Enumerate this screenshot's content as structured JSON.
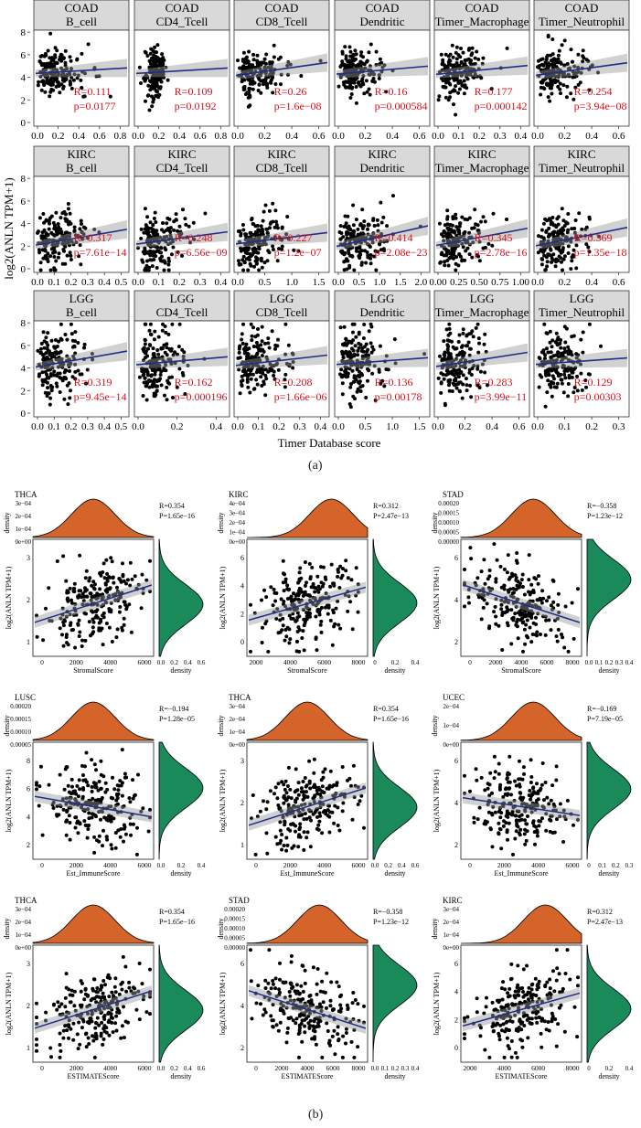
{
  "figure": {
    "caption_a": "(a)",
    "caption_b": "(b)"
  },
  "colors": {
    "point": "#000000",
    "fit": "#1f2d8a",
    "band": "#9a9a9a",
    "stat": "#d8121b",
    "strip": "#d9d9d9",
    "top_density": "#d4642a",
    "right_density": "#1b8a5a"
  },
  "panel_a": {
    "ylabel": "log2(ANLN TPM+1)",
    "xlabel": "Timer Database score",
    "rows": [
      {
        "cancer": "COAD",
        "yticks": [
          "0",
          "2",
          "4",
          "6",
          "8"
        ],
        "cells": [
          {
            "cell": "B_cell",
            "label": "B_cell",
            "R": "R=0.111",
            "p": "p=0.0177",
            "xticks": [
              "0.0",
              "0.2",
              "0.4",
              "0.6",
              "0.8"
            ]
          },
          {
            "cell": "CD4_Tcell",
            "label": "CD4_Tcell",
            "R": "R=0.109",
            "p": "p=0.0192",
            "xticks": [
              "0.0",
              "0.2",
              "0.4",
              "0.6",
              "0.8"
            ]
          },
          {
            "cell": "CD8_Tcell",
            "label": "CD8_Tcell",
            "R": "R=0.26",
            "p": "p=1.6e−08",
            "xticks": [
              "0.0",
              "0.2",
              "0.4",
              "0.6"
            ]
          },
          {
            "cell": "Dendritic",
            "label": "Dendritic",
            "R": "R=0.16",
            "p": "p=0.000584",
            "xticks": [
              "0.0",
              "0.2",
              "0.4",
              "0.6"
            ]
          },
          {
            "cell": "Timer_Macrophage",
            "label": "Timer_Macrophage",
            "R": "R=0.177",
            "p": "p=0.000142",
            "xticks": [
              "0.0",
              "0.1",
              "0.2",
              "0.3",
              "0.4"
            ]
          },
          {
            "cell": "Timer_Neutrophil",
            "label": "Timer_Neutrophil",
            "R": "R=0.254",
            "p": "p=3.94e−08",
            "xticks": [
              "0.0",
              "0.2",
              "0.4",
              "0.6"
            ]
          }
        ]
      },
      {
        "cancer": "KIRC",
        "yticks": [
          "0",
          "2",
          "4",
          "6",
          "8"
        ],
        "cells": [
          {
            "cell": "B_cell",
            "label": "B_cell",
            "R": "R=0.317",
            "p": "p=7.61e−14",
            "xticks": [
              "0.0",
              "0.1",
              "0.2",
              "0.3",
              "0.4",
              "0.5"
            ]
          },
          {
            "cell": "CD4_Tcell",
            "label": "CD4_Tcell",
            "R": "R=0.248",
            "p": "p=6.56e−09",
            "xticks": [
              "0.0",
              "0.1",
              "0.2",
              "0.3",
              "0.4"
            ]
          },
          {
            "cell": "CD8_Tcell",
            "label": "CD8_Tcell",
            "R": "R=0.227",
            "p": "p=1.2e−07",
            "xticks": [
              "0.0",
              "0.5",
              "1.0",
              "1.5"
            ]
          },
          {
            "cell": "Dendritic",
            "label": "Dendritic",
            "R": "R=0.414",
            "p": "p=2.08e−23",
            "xticks": [
              "0.0",
              "0.5",
              "1.0",
              "1.5",
              "2.0"
            ]
          },
          {
            "cell": "Timer_Macrophage",
            "label": "Timer_Macrophage",
            "R": "R=0.345",
            "p": "p=2.78e−16",
            "xticks": [
              "0.00",
              "0.25",
              "0.50",
              "0.75",
              "1.00"
            ]
          },
          {
            "cell": "Timer_Neutrophil",
            "label": "Timer_Neutrophil",
            "R": "R=0.369",
            "p": "p=1.35e−18",
            "xticks": [
              "0.0",
              "0.2",
              "0.4",
              "0.6"
            ]
          }
        ]
      },
      {
        "cancer": "LGG",
        "yticks": [
          "0",
          "2",
          "4",
          "6",
          "8"
        ],
        "cells": [
          {
            "cell": "B_cell",
            "label": "B_cell",
            "R": "R=0.319",
            "p": "p=9.45e−14",
            "xticks": [
              "0.0",
              "0.1",
              "0.2",
              "0.3",
              "0.4",
              "0.5"
            ]
          },
          {
            "cell": "CD4_Tcell",
            "label": "CD4_Tcell",
            "R": "R=0.162",
            "p": "p=0.000196",
            "xticks": [
              "0.0",
              "0.2",
              "0.4"
            ]
          },
          {
            "cell": "CD8_Tcell",
            "label": "CD8_Tcell",
            "R": "R=0.208",
            "p": "p=1.66e−06",
            "xticks": [
              "0.0",
              "0.1",
              "0.2",
              "0.3",
              "0.4"
            ]
          },
          {
            "cell": "Dendritic",
            "label": "Dendritic",
            "R": "R=0.136",
            "p": "p=0.00178",
            "xticks": [
              "0.0",
              "0.5",
              "1.0",
              "1.5"
            ]
          },
          {
            "cell": "Timer_Macrophage",
            "label": "Timer_Macrophage",
            "R": "R=0.283",
            "p": "p=3.99e−11",
            "xticks": [
              "0.0",
              "0.2",
              "0.4",
              "0.6"
            ]
          },
          {
            "cell": "Timer_Neutrophil",
            "label": "Timer_Neutrophil",
            "R": "R=0.129",
            "p": "p=0.00303",
            "xticks": [
              "0.0",
              "0.1",
              "0.2",
              "0.3"
            ]
          }
        ]
      }
    ]
  },
  "panel_b": {
    "ylabel": "log2(ANLN TPM+1)",
    "density_label": "density",
    "plots": [
      {
        "cancer": "THCA",
        "score": "StromalScore",
        "R": "R=0.354",
        "P": "P=1.65e−16",
        "top_yticks": [
          "3e−04",
          "2e−04",
          "1e−04",
          "0e+00"
        ],
        "xticks": [
          "0",
          "2000",
          "4000",
          "6000"
        ],
        "yticks": [
          "1",
          "2",
          "3"
        ],
        "dens_xticks": [
          "0.0",
          "0.2",
          "0.4",
          "0.6"
        ]
      },
      {
        "cancer": "KIRC",
        "score": "StromalScore",
        "R": "R=0.312",
        "P": "P=2.47e−13",
        "top_yticks": [
          "4e−04",
          "3e−04",
          "2e−04",
          "1e−04",
          "0e+00"
        ],
        "xticks": [
          "2000",
          "4000",
          "6000",
          "8000"
        ],
        "yticks": [
          "0",
          "2",
          "4",
          "6"
        ],
        "dens_xticks": [
          "0",
          "0.2",
          "0.4"
        ]
      },
      {
        "cancer": "STAD",
        "score": "StromalScore",
        "R": "R=−0.358",
        "P": "P=1.23e−12",
        "top_yticks": [
          "0.00020",
          "0.00015",
          "0.00010",
          "0.00005",
          "0.00000"
        ],
        "xticks": [
          "0",
          "2000",
          "4000",
          "6000",
          "8000"
        ],
        "yticks": [
          "2",
          "4",
          "6"
        ],
        "dens_xticks": [
          "0.0",
          "0.1",
          "0.2",
          "0.3",
          "0.4"
        ]
      },
      {
        "cancer": "LUSC",
        "score": "Est_ImmuneScore",
        "R": "R=−0.194",
        "P": "P=1.28e−05",
        "top_yticks": [
          "0.00020",
          "0.00015",
          "0.00010",
          "0.00005"
        ],
        "xticks": [
          "0",
          "2000",
          "4000",
          "6000"
        ],
        "yticks": [
          "2",
          "4",
          "6",
          "8"
        ],
        "dens_xticks": [
          "0.0",
          "0.2",
          "0.4"
        ]
      },
      {
        "cancer": "THCA",
        "score": "Est_ImmuneScore",
        "R": "R=0.354",
        "P": "P=1.65e−16",
        "top_yticks": [
          "3e−04",
          "2e−04",
          "1e−04",
          "0e+00"
        ],
        "xticks": [
          "0",
          "2000",
          "4000",
          "6000"
        ],
        "yticks": [
          "1",
          "2",
          "3"
        ],
        "dens_xticks": [
          "0.0",
          "0.2",
          "0.4",
          "0.6"
        ]
      },
      {
        "cancer": "UCEC",
        "score": "Est_ImmuneScore",
        "R": "R=−0.169",
        "P": "P=7.19e−05",
        "top_yticks": [
          "2e−04",
          "1e−04",
          "0e+00"
        ],
        "xticks": [
          "0",
          "2000",
          "4000",
          "6000"
        ],
        "yticks": [
          "2",
          "4",
          "6"
        ],
        "dens_xticks": [
          "0",
          "0.1",
          "0.2",
          "0.3"
        ]
      },
      {
        "cancer": "THCA",
        "score": "ESTIMATEScore",
        "R": "R=0.354",
        "P": "P=1.65e−16",
        "top_yticks": [
          "3e−04",
          "2e−04",
          "1e−04",
          "0e+00"
        ],
        "xticks": [
          "0",
          "2000",
          "4000",
          "6000"
        ],
        "yticks": [
          "1",
          "2",
          "3"
        ],
        "dens_xticks": [
          "0.0",
          "0.2",
          "0.4",
          "0.6"
        ]
      },
      {
        "cancer": "STAD",
        "score": "ESTIMATEScore",
        "R": "R=−0.358",
        "P": "P=1.23e−12",
        "top_yticks": [
          "0.00020",
          "0.00015",
          "0.00010",
          "0.00005",
          "0.00000"
        ],
        "xticks": [
          "0",
          "2000",
          "4000",
          "6000",
          "8000"
        ],
        "yticks": [
          "2",
          "4",
          "6"
        ],
        "dens_xticks": [
          "0.0",
          "0.1",
          "0.2",
          "0.3",
          "0.4"
        ]
      },
      {
        "cancer": "KIRC",
        "score": "ESTIMATEScore",
        "R": "R=0.312",
        "P": "P=2.47e−13",
        "top_yticks": [
          "3e−04",
          "2e−04",
          "1e−04",
          "0e+00"
        ],
        "xticks": [
          "2000",
          "4000",
          "6000",
          "8000"
        ],
        "yticks": [
          "0",
          "2",
          "4",
          "6"
        ],
        "dens_xticks": [
          "0",
          "0.2",
          "0.4"
        ]
      }
    ]
  },
  "chart_data": [
    {
      "type": "scatter",
      "title": "",
      "xlabel": "Timer Database score",
      "ylabel": "log2(ANLN TPM+1)",
      "ylim": [
        0,
        8
      ],
      "facets": [
        {
          "row": "COAD",
          "col": "B_cell",
          "R": 0.111,
          "p": "0.0177",
          "xlim": [
            0,
            0.8
          ]
        },
        {
          "row": "COAD",
          "col": "CD4_Tcell",
          "R": 0.109,
          "p": "0.0192",
          "xlim": [
            0,
            0.8
          ]
        },
        {
          "row": "COAD",
          "col": "CD8_Tcell",
          "R": 0.26,
          "p": "1.6e-08",
          "xlim": [
            0,
            0.6
          ]
        },
        {
          "row": "COAD",
          "col": "Dendritic",
          "R": 0.16,
          "p": "0.000584",
          "xlim": [
            0,
            0.6
          ]
        },
        {
          "row": "COAD",
          "col": "Timer_Macrophage",
          "R": 0.177,
          "p": "0.000142",
          "xlim": [
            0,
            0.4
          ]
        },
        {
          "row": "COAD",
          "col": "Timer_Neutrophil",
          "R": 0.254,
          "p": "3.94e-08",
          "xlim": [
            0,
            0.7
          ]
        },
        {
          "row": "KIRC",
          "col": "B_cell",
          "R": 0.317,
          "p": "7.61e-14",
          "xlim": [
            0,
            0.5
          ]
        },
        {
          "row": "KIRC",
          "col": "CD4_Tcell",
          "R": 0.248,
          "p": "6.56e-09",
          "xlim": [
            0,
            0.45
          ]
        },
        {
          "row": "KIRC",
          "col": "CD8_Tcell",
          "R": 0.227,
          "p": "1.2e-07",
          "xlim": [
            0,
            1.6
          ]
        },
        {
          "row": "KIRC",
          "col": "Dendritic",
          "R": 0.414,
          "p": "2.08e-23",
          "xlim": [
            0,
            2.2
          ]
        },
        {
          "row": "KIRC",
          "col": "Timer_Macrophage",
          "R": 0.345,
          "p": "2.78e-16",
          "xlim": [
            0,
            1.05
          ]
        },
        {
          "row": "KIRC",
          "col": "Timer_Neutrophil",
          "R": 0.369,
          "p": "1.35e-18",
          "xlim": [
            0,
            0.65
          ]
        },
        {
          "row": "LGG",
          "col": "B_cell",
          "R": 0.319,
          "p": "9.45e-14",
          "xlim": [
            0,
            0.55
          ]
        },
        {
          "row": "LGG",
          "col": "CD4_Tcell",
          "R": 0.162,
          "p": "0.000196",
          "xlim": [
            0,
            0.5
          ]
        },
        {
          "row": "LGG",
          "col": "CD8_Tcell",
          "R": 0.208,
          "p": "1.66e-06",
          "xlim": [
            0,
            0.45
          ]
        },
        {
          "row": "LGG",
          "col": "Dendritic",
          "R": 0.136,
          "p": "0.00178",
          "xlim": [
            0,
            1.5
          ]
        },
        {
          "row": "LGG",
          "col": "Timer_Macrophage",
          "R": 0.283,
          "p": "3.99e-11",
          "xlim": [
            0,
            0.7
          ]
        },
        {
          "row": "LGG",
          "col": "Timer_Neutrophil",
          "R": 0.129,
          "p": "0.00303",
          "xlim": [
            0,
            0.38
          ]
        }
      ]
    },
    {
      "type": "scatter",
      "title": "",
      "ylabel": "log2(ANLN TPM+1)",
      "facets": [
        {
          "cancer": "THCA",
          "xlabel": "StromalScore",
          "R": 0.354,
          "P": "1.65e-16",
          "xlim": [
            -500,
            7500
          ],
          "ylim": [
            0,
            3.5
          ]
        },
        {
          "cancer": "KIRC",
          "xlabel": "StromalScore",
          "R": 0.312,
          "P": "2.47e-13",
          "xlim": [
            500,
            8500
          ],
          "ylim": [
            -0.5,
            7.5
          ]
        },
        {
          "cancer": "STAD",
          "xlabel": "StromalScore",
          "R": -0.358,
          "P": "1.23e-12",
          "xlim": [
            -500,
            8500
          ],
          "ylim": [
            0,
            7.5
          ]
        },
        {
          "cancer": "LUSC",
          "xlabel": "Est_ImmuneScore",
          "R": -0.194,
          "P": "1.28e-05",
          "xlim": [
            -1000,
            7500
          ],
          "ylim": [
            0,
            8.5
          ]
        },
        {
          "cancer": "THCA",
          "xlabel": "Est_ImmuneScore",
          "R": 0.354,
          "P": "1.65e-16",
          "xlim": [
            -500,
            7500
          ],
          "ylim": [
            0,
            3.5
          ]
        },
        {
          "cancer": "UCEC",
          "xlabel": "Est_ImmuneScore",
          "R": -0.169,
          "P": "7.19e-05",
          "xlim": [
            -1000,
            6500
          ],
          "ylim": [
            0,
            8
          ]
        },
        {
          "cancer": "THCA",
          "xlabel": "ESTIMATEScore",
          "R": 0.354,
          "P": "1.65e-16",
          "xlim": [
            -500,
            7500
          ],
          "ylim": [
            0,
            3.5
          ]
        },
        {
          "cancer": "STAD",
          "xlabel": "ESTIMATEScore",
          "R": -0.358,
          "P": "1.23e-12",
          "xlim": [
            -1000,
            9000
          ],
          "ylim": [
            0,
            7.5
          ]
        },
        {
          "cancer": "KIRC",
          "xlabel": "ESTIMATEScore",
          "R": 0.312,
          "P": "2.47e-13",
          "xlim": [
            0,
            9000
          ],
          "ylim": [
            -0.5,
            7.5
          ]
        }
      ]
    }
  ]
}
